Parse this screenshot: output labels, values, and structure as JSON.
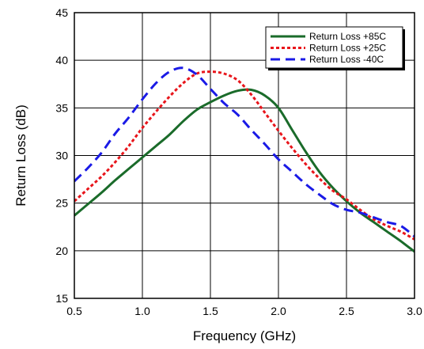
{
  "chart_data": {
    "type": "line",
    "title": "",
    "xlabel": "Frequency (GHz)",
    "ylabel": "Return Loss (dB)",
    "xlim": [
      0.5,
      3.0
    ],
    "ylim": [
      15,
      45
    ],
    "xticks": [
      0.5,
      1.0,
      1.5,
      2.0,
      2.5,
      3.0
    ],
    "xtick_labels": [
      "0.5",
      "1.0",
      "1.5",
      "2.0",
      "2.5",
      "3.0"
    ],
    "yticks": [
      15,
      20,
      25,
      30,
      35,
      40,
      45
    ],
    "ytick_labels": [
      "15",
      "20",
      "25",
      "30",
      "35",
      "40",
      "45"
    ],
    "grid": true,
    "legend_position": "top-right",
    "series": [
      {
        "name": "Return Loss +85C",
        "color": "#1a6b2a",
        "dash": "solid",
        "x": [
          0.5,
          0.6,
          0.7,
          0.8,
          0.9,
          1.0,
          1.1,
          1.2,
          1.3,
          1.4,
          1.5,
          1.6,
          1.7,
          1.8,
          1.9,
          2.0,
          2.1,
          2.2,
          2.3,
          2.4,
          2.5,
          2.6,
          2.7,
          2.8,
          2.9,
          3.0
        ],
        "y": [
          23.7,
          24.9,
          26.1,
          27.4,
          28.6,
          29.8,
          31.0,
          32.2,
          33.6,
          34.8,
          35.6,
          36.3,
          36.8,
          36.9,
          36.3,
          35.0,
          32.7,
          30.4,
          28.3,
          26.6,
          25.2,
          24.0,
          23.0,
          22.0,
          21.0,
          19.9
        ]
      },
      {
        "name": "Return Loss +25C",
        "color": "#e8151b",
        "dash": "dotted",
        "x": [
          0.5,
          0.6,
          0.7,
          0.8,
          0.9,
          1.0,
          1.1,
          1.2,
          1.3,
          1.4,
          1.5,
          1.6,
          1.7,
          1.8,
          1.9,
          2.0,
          2.1,
          2.2,
          2.3,
          2.4,
          2.5,
          2.6,
          2.7,
          2.8,
          2.9,
          3.0
        ],
        "y": [
          25.2,
          26.5,
          27.8,
          29.3,
          31.0,
          32.9,
          34.6,
          36.2,
          37.6,
          38.6,
          38.8,
          38.6,
          37.9,
          36.4,
          34.5,
          32.6,
          30.8,
          29.1,
          27.6,
          26.3,
          25.4,
          24.3,
          23.3,
          22.6,
          22.0,
          21.2
        ]
      },
      {
        "name": "Return Loss -40C",
        "color": "#1a1ae6",
        "dash": "dashed",
        "x": [
          0.5,
          0.6,
          0.7,
          0.8,
          0.9,
          1.0,
          1.1,
          1.2,
          1.3,
          1.4,
          1.5,
          1.6,
          1.7,
          1.8,
          1.9,
          2.0,
          2.1,
          2.2,
          2.3,
          2.4,
          2.5,
          2.6,
          2.7,
          2.8,
          2.9,
          3.0
        ],
        "y": [
          27.3,
          28.7,
          30.3,
          32.3,
          34.0,
          35.9,
          37.6,
          38.8,
          39.2,
          38.5,
          37.0,
          35.5,
          34.3,
          32.7,
          31.2,
          29.6,
          28.3,
          27.0,
          25.9,
          24.9,
          24.3,
          24.0,
          23.5,
          23.0,
          22.6,
          21.5
        ]
      }
    ]
  }
}
